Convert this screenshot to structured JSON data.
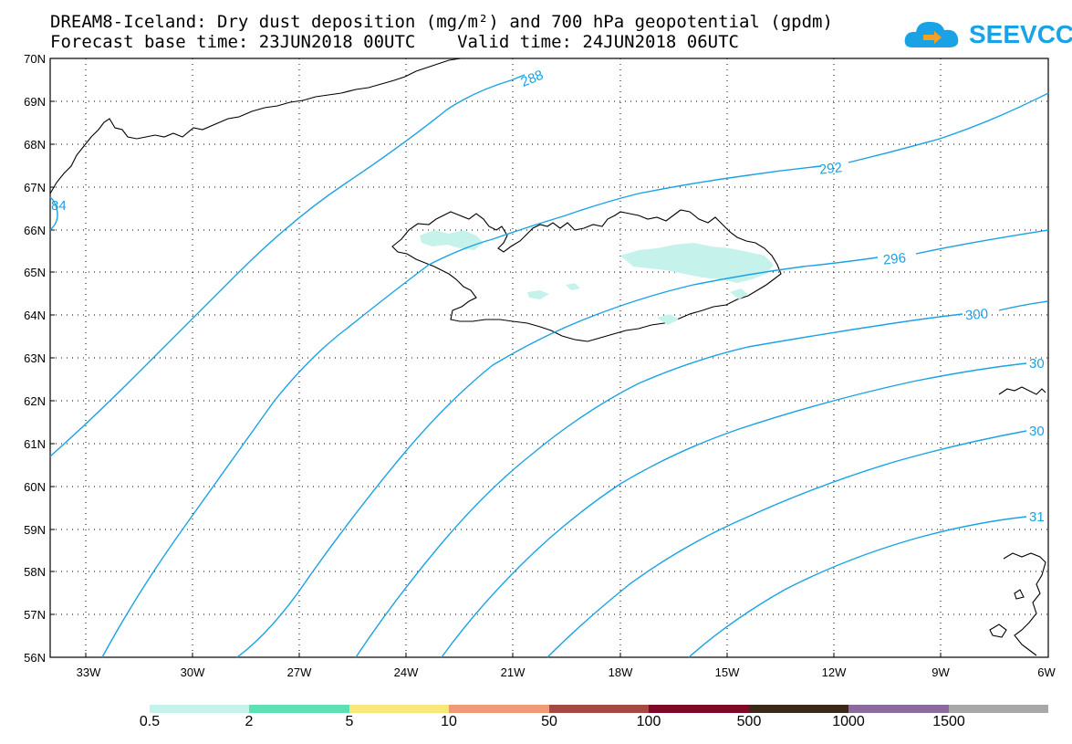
{
  "header": {
    "title_line1": "DREAM8-Iceland: Dry dust deposition (mg/m²) and 700 hPa geopotential (gpdm)",
    "title_line2": "Forecast base time: 23JUN2018 00UTC    Valid time: 24JUN2018 06UTC"
  },
  "logo": {
    "text": "SEEVCCC",
    "color": "#1aa2e6"
  },
  "map": {
    "lat_labels": [
      "70N",
      "69N",
      "68N",
      "67N",
      "66N",
      "65N",
      "64N",
      "63N",
      "62N",
      "61N",
      "60N",
      "59N",
      "58N",
      "57N",
      "56N"
    ],
    "lon_labels": [
      "33W",
      "30W",
      "27W",
      "24W",
      "21W",
      "18W",
      "15W",
      "12W",
      "9W",
      "6W"
    ],
    "contour_color": "#1aa2e6",
    "contour_labels": [
      "288",
      "292",
      "296",
      "300",
      "30",
      "30",
      "31",
      "84"
    ]
  },
  "colorbar": {
    "colors": [
      "#c6f2ec",
      "#5ce0b4",
      "#f7e87a",
      "#ee9a76",
      "#a44a45",
      "#7c0a26",
      "#3a2818",
      "#8c6a9c",
      "#a8a8a8"
    ],
    "labels": [
      "0.5",
      "2",
      "5",
      "10",
      "50",
      "100",
      "500",
      "1000",
      "1500"
    ]
  }
}
